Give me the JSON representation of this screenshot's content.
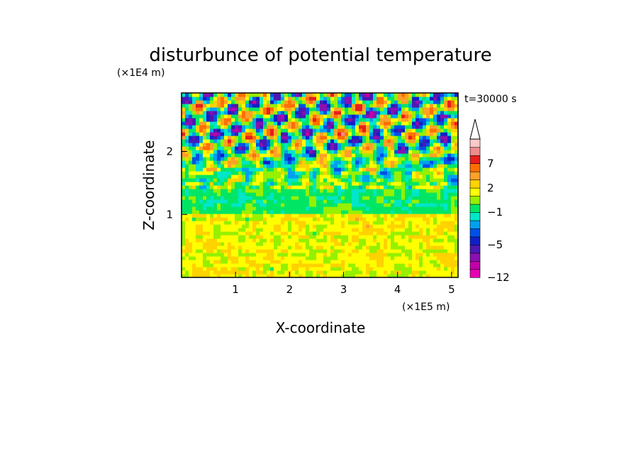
{
  "chart_data": {
    "type": "heatmap",
    "title": "disturbunce of potential temperature",
    "annotation": "t=30000 s",
    "x_axis": {
      "label": "X-coordinate",
      "unit_label": "(×1E5 m)",
      "ticks": [
        "1",
        "2",
        "3",
        "4",
        "5"
      ],
      "range": [
        0.0,
        5.12
      ]
    },
    "y_axis": {
      "label": "Z-coordinate",
      "unit_label": "(×1E4 m)",
      "ticks": [
        "1",
        "2"
      ],
      "range": [
        0.0,
        2.93
      ]
    },
    "colorbar": {
      "ticks": [
        "7",
        "2",
        "−1",
        "−5",
        "−12"
      ],
      "levels": [
        -12,
        -10,
        -8,
        -6,
        -5,
        -4,
        -3,
        -2,
        -1,
        0,
        1,
        2,
        3,
        5,
        7,
        9,
        12
      ],
      "colors": [
        "#e600b4",
        "#c000a8",
        "#8a10b0",
        "#4b18b4",
        "#1020c8",
        "#0050e6",
        "#00a0f0",
        "#00e6c8",
        "#00e664",
        "#96f000",
        "#ffff00",
        "#ffd200",
        "#ffa028",
        "#ff6e00",
        "#e61e1e",
        "#f08c8c",
        "#f8c8c8"
      ],
      "extend": "max"
    },
    "field_description": {
      "bands": [
        {
          "z_range": [
            0.0,
            1.0
          ],
          "dominant_value": 1.5
        },
        {
          "z_range": [
            1.0,
            1.4
          ],
          "dominant_value": -0.5
        },
        {
          "z_range": [
            1.4,
            2.93
          ],
          "dominant_value": 0.0,
          "wave_amplitude": 7
        }
      ]
    }
  }
}
